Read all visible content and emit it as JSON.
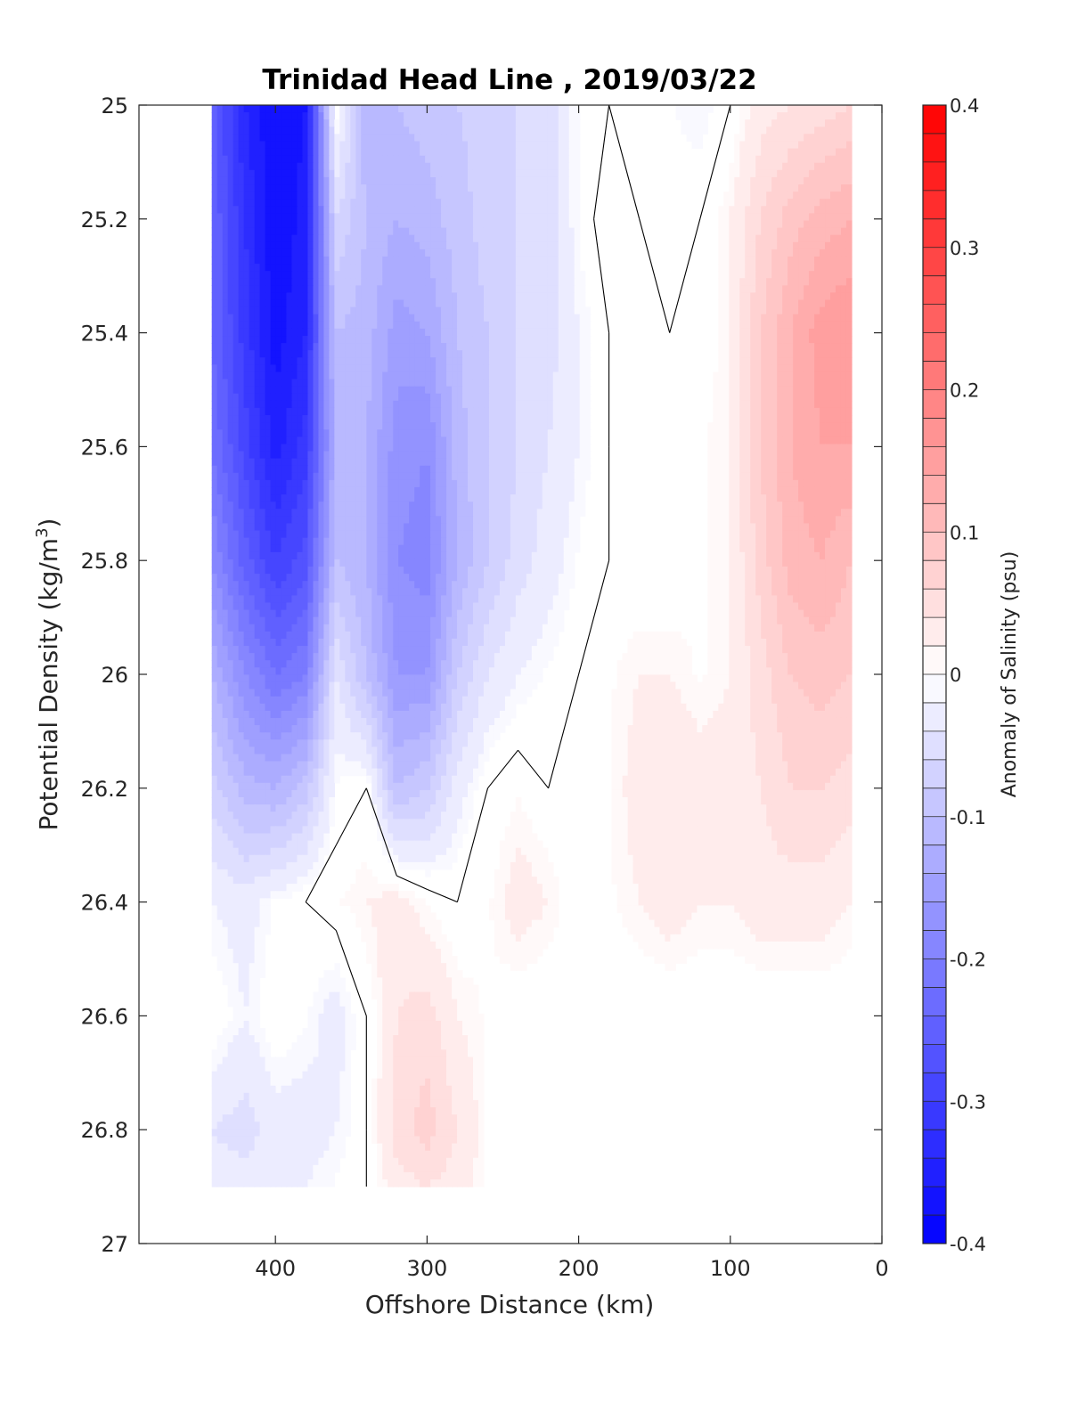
{
  "chart_data": {
    "type": "heatmap",
    "title": "Trinidad Head Line , 2019/03/22",
    "xlabel": "Offshore Distance (km)",
    "ylabel_main": "Potential Density (kg/m",
    "ylabel_sup": "3",
    "ylabel_close": ")",
    "colorbar_label": "Anomaly of Salinity (psu)",
    "x_reversed": true,
    "y_reversed": true,
    "xlim": [
      0,
      490
    ],
    "ylim": [
      25,
      27
    ],
    "x_ticks": [
      "400",
      "300",
      "200",
      "100",
      "0"
    ],
    "y_ticks": [
      "25",
      "25.2",
      "25.4",
      "25.6",
      "25.8",
      "26",
      "26.2",
      "26.4",
      "26.6",
      "26.8",
      "27"
    ],
    "colorbar": {
      "clim": [
        -0.4,
        0.4
      ],
      "levels": 40,
      "ticks": [
        "0.4",
        "0.3",
        "0.2",
        "0.1",
        "0",
        "-0.1",
        "-0.2",
        "-0.3",
        "-0.4"
      ],
      "colormap": [
        "#0000ff",
        "#ffffff",
        "#ff0000"
      ]
    },
    "x": [
      442,
      420,
      400,
      380,
      360,
      340,
      320,
      300,
      280,
      260,
      240,
      220,
      200,
      180,
      160,
      140,
      120,
      100,
      80,
      60,
      40,
      20
    ],
    "y": [
      25.0,
      25.2,
      25.4,
      25.6,
      25.8,
      26.0,
      26.2,
      26.4,
      26.6,
      26.8,
      26.9
    ],
    "z": [
      [
        -0.25,
        -0.34,
        -0.38,
        -0.36,
        0.0,
        -0.12,
        -0.1,
        -0.09,
        -0.08,
        -0.07,
        -0.06,
        -0.05,
        -0.01,
        0.0,
        -0.01,
        -0.01,
        -0.02,
        0.0,
        0.03,
        0.04,
        0.05,
        0.06
      ],
      [
        -0.24,
        -0.32,
        -0.38,
        -0.35,
        -0.06,
        -0.1,
        -0.12,
        -0.11,
        -0.09,
        -0.07,
        -0.06,
        -0.05,
        -0.01,
        0.01,
        0.0,
        -0.01,
        0.0,
        0.02,
        0.06,
        0.09,
        0.11,
        0.12
      ],
      [
        -0.24,
        -0.31,
        -0.37,
        -0.34,
        -0.1,
        -0.11,
        -0.15,
        -0.14,
        -0.1,
        -0.08,
        -0.06,
        -0.05,
        -0.02,
        0.0,
        0.0,
        0.0,
        0.0,
        0.02,
        0.08,
        0.12,
        0.15,
        0.16
      ],
      [
        -0.22,
        -0.29,
        -0.35,
        -0.31,
        -0.12,
        -0.12,
        -0.17,
        -0.18,
        -0.11,
        -0.08,
        -0.06,
        -0.04,
        -0.02,
        0.0,
        0.0,
        0.0,
        0.01,
        0.02,
        0.08,
        0.12,
        0.14,
        0.14
      ],
      [
        -0.18,
        -0.25,
        -0.3,
        -0.27,
        -0.1,
        -0.12,
        -0.18,
        -0.19,
        -0.12,
        -0.08,
        -0.05,
        -0.03,
        -0.01,
        0.0,
        0.0,
        0.0,
        0.01,
        0.02,
        0.07,
        0.11,
        0.12,
        0.1
      ],
      [
        -0.12,
        -0.18,
        -0.22,
        -0.2,
        -0.04,
        -0.1,
        -0.16,
        -0.16,
        -0.08,
        -0.04,
        -0.02,
        -0.01,
        0.0,
        0.01,
        0.02,
        0.02,
        0.01,
        0.02,
        0.05,
        0.08,
        0.09,
        0.08
      ],
      [
        -0.07,
        -0.11,
        -0.12,
        -0.09,
        -0.01,
        0.0,
        -0.1,
        -0.08,
        -0.03,
        0.0,
        0.01,
        0.0,
        0.0,
        0.01,
        0.03,
        0.04,
        0.03,
        0.03,
        0.04,
        0.06,
        0.06,
        0.05
      ],
      [
        -0.02,
        -0.03,
        -0.01,
        0.0,
        0.01,
        0.02,
        0.03,
        0.01,
        0.0,
        0.01,
        0.03,
        0.02,
        0.0,
        0.01,
        0.02,
        0.03,
        0.02,
        0.02,
        0.03,
        0.03,
        0.03,
        0.02
      ],
      [
        0.0,
        -0.02,
        0.0,
        -0.01,
        -0.03,
        0.0,
        0.04,
        0.05,
        0.02,
        0.01,
        0.0,
        0.0,
        0.0,
        0.0,
        0.0,
        0.0,
        0.0,
        0.0,
        0.0,
        0.0,
        0.0,
        0.0
      ],
      [
        -0.04,
        -0.05,
        -0.03,
        -0.03,
        -0.02,
        0.0,
        0.05,
        0.07,
        0.04,
        0.01,
        0.0,
        0.0,
        0.0,
        0.0,
        0.0,
        0.0,
        0.0,
        0.0,
        0.0,
        0.0,
        0.0,
        0.0
      ],
      [
        -0.03,
        -0.03,
        -0.02,
        -0.02,
        -0.01,
        0.0,
        0.03,
        0.04,
        0.03,
        0.01,
        0.0,
        0.0,
        0.0,
        0.0,
        0.0,
        0.0,
        0.0,
        0.0,
        0.0,
        0.0,
        0.0,
        0.0
      ]
    ]
  }
}
